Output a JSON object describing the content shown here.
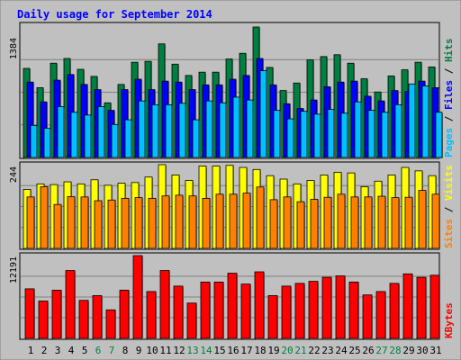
{
  "chart_data": [
    {
      "type": "bar",
      "title": "Daily usage for September 2014",
      "ymax_label": "1384",
      "right_labels": [
        "Pages",
        "Files",
        "Hits"
      ],
      "categories": [
        "1",
        "2",
        "3",
        "4",
        "5",
        "6",
        "7",
        "8",
        "9",
        "10",
        "11",
        "12",
        "13",
        "14",
        "15",
        "16",
        "17",
        "18",
        "19",
        "20",
        "21",
        "22",
        "23",
        "24",
        "25",
        "26",
        "27",
        "28",
        "29",
        "30",
        "31"
      ],
      "weekend_days": [
        "6",
        "7",
        "13",
        "14",
        "20",
        "21",
        "27",
        "28"
      ],
      "series": [
        {
          "name": "Hits",
          "color": "#008040",
          "values": [
            945,
            740,
            1000,
            1050,
            935,
            860,
            580,
            775,
            1010,
            1020,
            1205,
            990,
            870,
            905,
            905,
            1045,
            1105,
            1384,
            955,
            710,
            790,
            1035,
            1070,
            1090,
            1000,
            835,
            695,
            865,
            930,
            1010,
            960
          ]
        },
        {
          "name": "Files",
          "color": "#0000ff",
          "values": [
            800,
            590,
            820,
            880,
            775,
            720,
            500,
            720,
            830,
            720,
            810,
            800,
            720,
            770,
            770,
            830,
            870,
            1050,
            770,
            570,
            520,
            610,
            750,
            800,
            810,
            650,
            600,
            710,
            700,
            810,
            740
          ]
        },
        {
          "name": "Pages",
          "color": "#00c0ff",
          "values": [
            340,
            310,
            540,
            480,
            450,
            540,
            350,
            400,
            600,
            560,
            560,
            575,
            400,
            600,
            580,
            640,
            610,
            920,
            500,
            410,
            490,
            460,
            510,
            470,
            590,
            500,
            480,
            560,
            780,
            760,
            480
          ]
        }
      ],
      "ylim": [
        0,
        1384
      ]
    },
    {
      "type": "bar",
      "ymax_label": "244",
      "right_labels": [
        "Sites",
        "Visits"
      ],
      "categories": [
        "1",
        "2",
        "3",
        "4",
        "5",
        "6",
        "7",
        "8",
        "9",
        "10",
        "11",
        "12",
        "13",
        "14",
        "15",
        "16",
        "17",
        "18",
        "19",
        "20",
        "21",
        "22",
        "23",
        "24",
        "25",
        "26",
        "27",
        "28",
        "29",
        "30",
        "31"
      ],
      "series": [
        {
          "name": "Visits",
          "color": "#ffff00",
          "values": [
            172,
            188,
            186,
            194,
            188,
            200,
            184,
            190,
            192,
            208,
            244,
            214,
            198,
            240,
            240,
            242,
            236,
            230,
            212,
            202,
            188,
            198,
            214,
            222,
            220,
            180,
            196,
            214,
            236,
            226,
            212
          ]
        },
        {
          "name": "Sites",
          "color": "#ff8000",
          "values": [
            150,
            180,
            128,
            151,
            150,
            139,
            141,
            146,
            148,
            146,
            153,
            155,
            153,
            146,
            158,
            158,
            161,
            179,
            142,
            150,
            136,
            143,
            149,
            158,
            150,
            150,
            152,
            148,
            149,
            169,
            158
          ]
        }
      ],
      "ylim": [
        0,
        244
      ]
    },
    {
      "type": "bar",
      "ymax_label": "12191",
      "right_labels": [
        "KBytes"
      ],
      "categories": [
        "1",
        "2",
        "3",
        "4",
        "5",
        "6",
        "7",
        "8",
        "9",
        "10",
        "11",
        "12",
        "13",
        "14",
        "15",
        "16",
        "17",
        "18",
        "19",
        "20",
        "21",
        "22",
        "23",
        "24",
        "25",
        "26",
        "27",
        "28",
        "29",
        "30",
        "31"
      ],
      "series": [
        {
          "name": "KBytes",
          "color": "#ff0000",
          "values": [
            7300,
            5500,
            7100,
            10000,
            5600,
            6300,
            4200,
            7100,
            12191,
            6900,
            10000,
            7700,
            5200,
            8300,
            8300,
            9600,
            8000,
            9800,
            6300,
            7700,
            8100,
            8400,
            9000,
            9200,
            8300,
            6400,
            6900,
            8100,
            9500,
            9000,
            9300
          ]
        }
      ],
      "ylim": [
        0,
        12191
      ]
    }
  ],
  "colors": {
    "background": "#c0c0c0",
    "title": "#0000ff",
    "axis_label_weekday": "#000000",
    "axis_label_weekend": "#008040"
  }
}
